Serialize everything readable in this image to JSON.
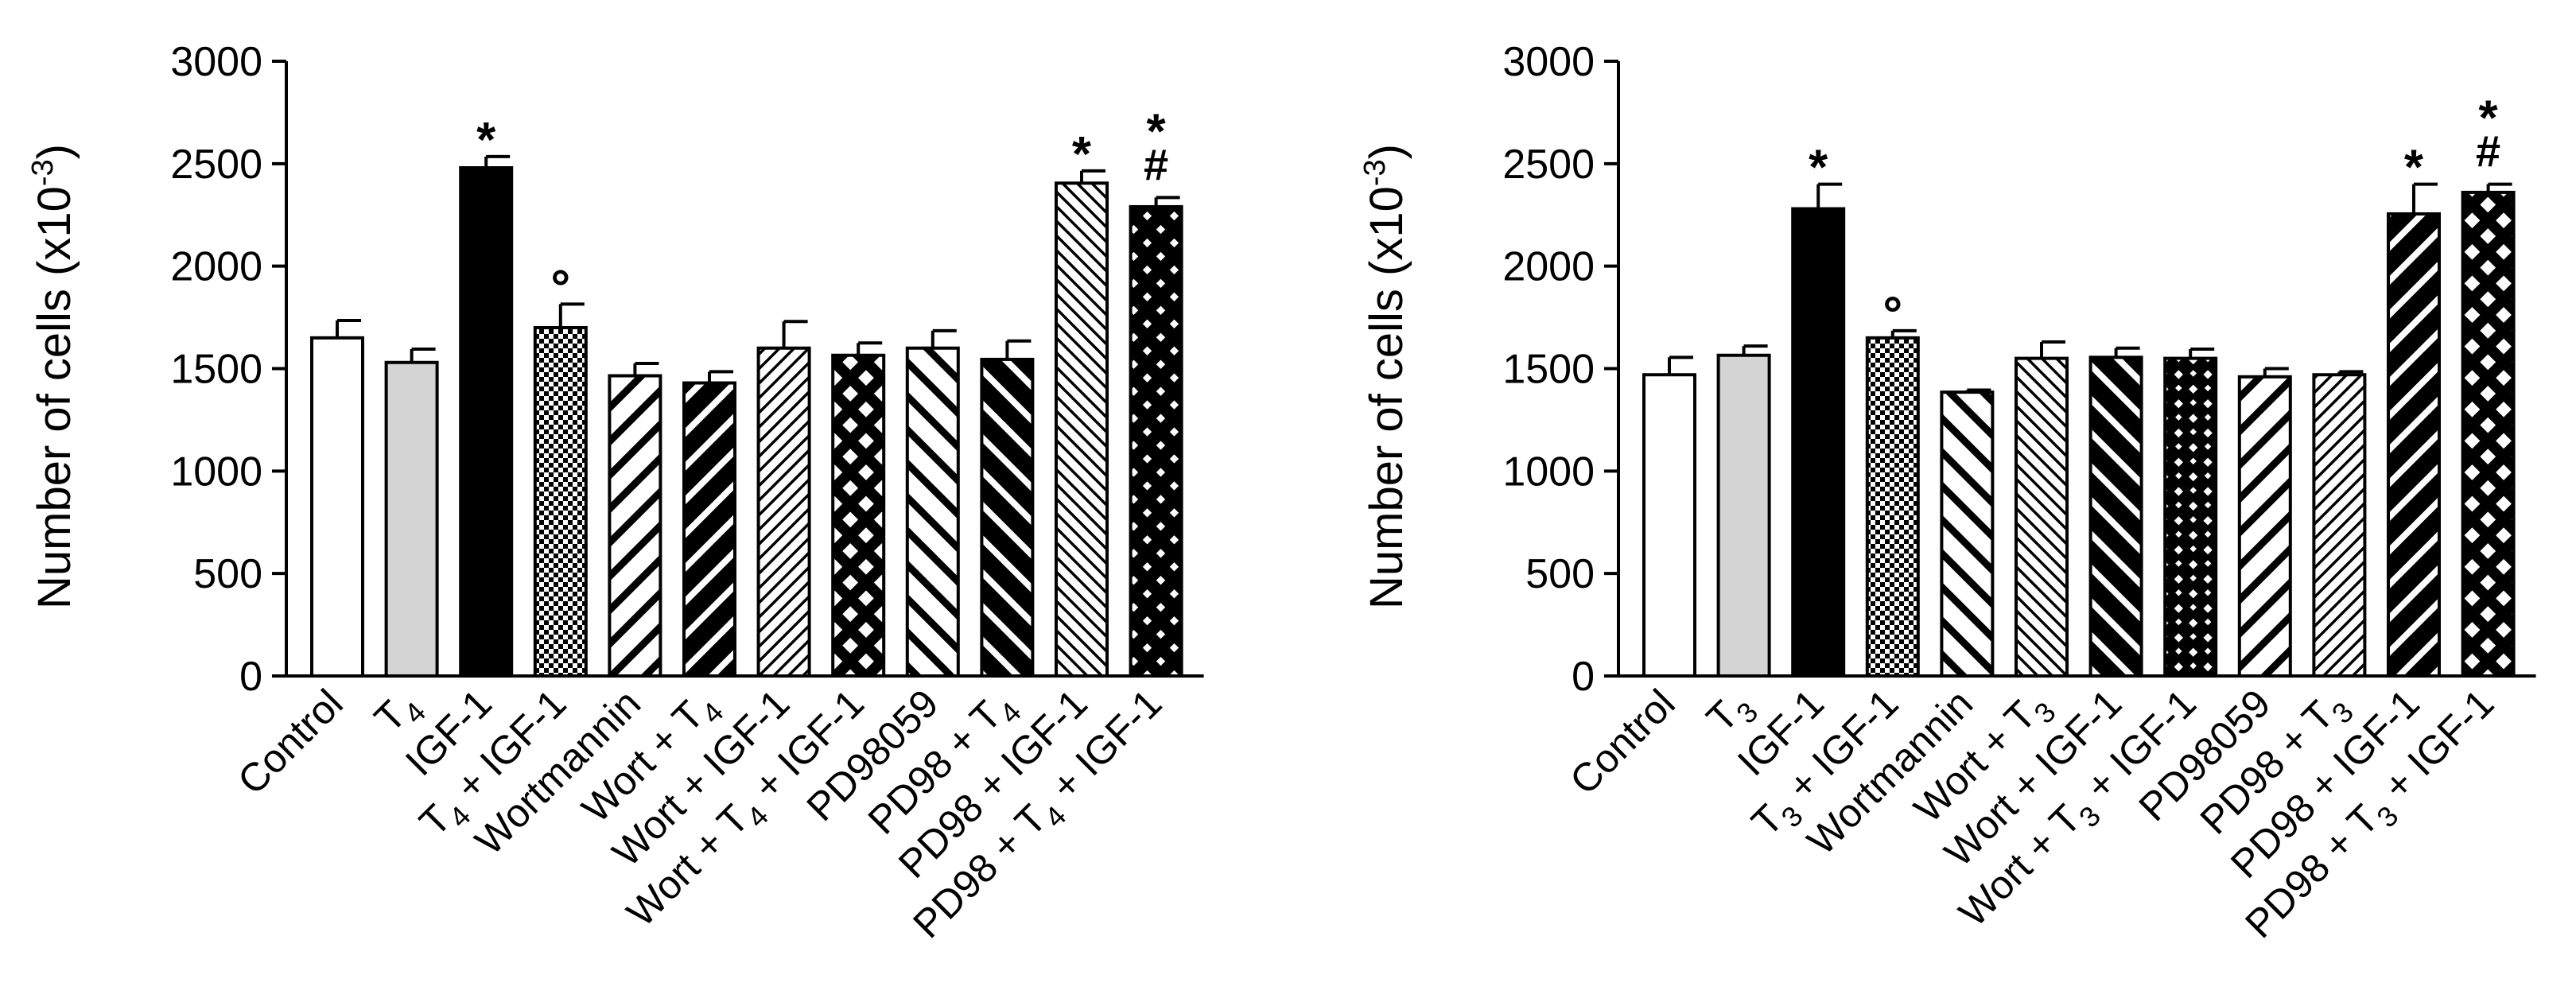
{
  "chart_data": [
    {
      "type": "bar",
      "ylabel": "Number of cells (x10",
      "ylabel_sup": "-3",
      "ylabel_close": ")",
      "ylim": [
        0,
        3000
      ],
      "yticks": [
        "0",
        "500",
        "1000",
        "1500",
        "2000",
        "2500",
        "3000"
      ],
      "categories": [
        {
          "label": "Control",
          "sub": ""
        },
        {
          "label": "T",
          "sub": "4",
          "after": ""
        },
        {
          "label": "IGF-1",
          "sub": ""
        },
        {
          "label": "T",
          "sub": "4",
          "after": " + IGF-1"
        },
        {
          "label": "Wortmannin",
          "sub": ""
        },
        {
          "label": "Wort + T",
          "sub": "4",
          "after": ""
        },
        {
          "label": "Wort + IGF-1",
          "sub": ""
        },
        {
          "label": "Wort + T",
          "sub": "4",
          "after": " + IGF-1"
        },
        {
          "label": "PD98059",
          "sub": ""
        },
        {
          "label": "PD98 + T",
          "sub": "4",
          "after": ""
        },
        {
          "label": "PD98 + IGF-1",
          "sub": ""
        },
        {
          "label": "PD98 + T",
          "sub": "4",
          "after": " + IGF-1"
        }
      ],
      "values": [
        1650,
        1530,
        2480,
        1700,
        1465,
        1430,
        1600,
        1565,
        1600,
        1545,
        2405,
        2290
      ],
      "errors": [
        85,
        65,
        55,
        115,
        60,
        55,
        130,
        60,
        85,
        90,
        60,
        45
      ],
      "patterns": [
        "white",
        "gray",
        "black",
        "checker",
        "diag-r-thick",
        "diag-r-black",
        "diag-r-thin",
        "cross-hatch",
        "diag-l-thick",
        "diag-l-black",
        "diag-l-thin",
        "cross-black"
      ],
      "annotations": [
        {
          "index": 2,
          "marks": [
            "*"
          ]
        },
        {
          "index": 3,
          "marks": [
            "°"
          ]
        },
        {
          "index": 10,
          "marks": [
            "*"
          ]
        },
        {
          "index": 11,
          "marks": [
            "*",
            "#"
          ]
        }
      ]
    },
    {
      "type": "bar",
      "ylabel": "Number of cells (x10",
      "ylabel_sup": "-3",
      "ylabel_close": ")",
      "ylim": [
        0,
        3000
      ],
      "yticks": [
        "0",
        "500",
        "1000",
        "1500",
        "2000",
        "2500",
        "3000"
      ],
      "categories": [
        {
          "label": "Control",
          "sub": ""
        },
        {
          "label": "T",
          "sub": "3",
          "after": ""
        },
        {
          "label": "IGF-1",
          "sub": ""
        },
        {
          "label": "T",
          "sub": "3",
          "after": " + IGF-1"
        },
        {
          "label": "Wortmannin",
          "sub": ""
        },
        {
          "label": "Wort + T",
          "sub": "3",
          "after": ""
        },
        {
          "label": "Wort + IGF-1",
          "sub": ""
        },
        {
          "label": "Wort + T",
          "sub": "3",
          "after": " + IGF-1"
        },
        {
          "label": "PD98059",
          "sub": ""
        },
        {
          "label": "PD98 + T",
          "sub": "3",
          "after": ""
        },
        {
          "label": "PD98 + IGF-1",
          "sub": ""
        },
        {
          "label": "PD98 + T",
          "sub": "3",
          "after": " + IGF-1"
        }
      ],
      "values": [
        1470,
        1565,
        2280,
        1650,
        1385,
        1550,
        1555,
        1550,
        1460,
        1470,
        2255,
        2360
      ],
      "errors": [
        85,
        45,
        120,
        35,
        10,
        80,
        45,
        45,
        40,
        15,
        145,
        40
      ],
      "patterns": [
        "white",
        "gray",
        "black",
        "checker",
        "diag-l-thick",
        "diag-l-thin",
        "diag-l-black",
        "brick",
        "diag-r-thick",
        "diag-r-thin",
        "diag-r-black",
        "cross-hatch"
      ],
      "annotations": [
        {
          "index": 2,
          "marks": [
            "*"
          ]
        },
        {
          "index": 3,
          "marks": [
            "°"
          ]
        },
        {
          "index": 10,
          "marks": [
            "*"
          ]
        },
        {
          "index": 11,
          "marks": [
            "*",
            "#"
          ]
        }
      ]
    }
  ]
}
